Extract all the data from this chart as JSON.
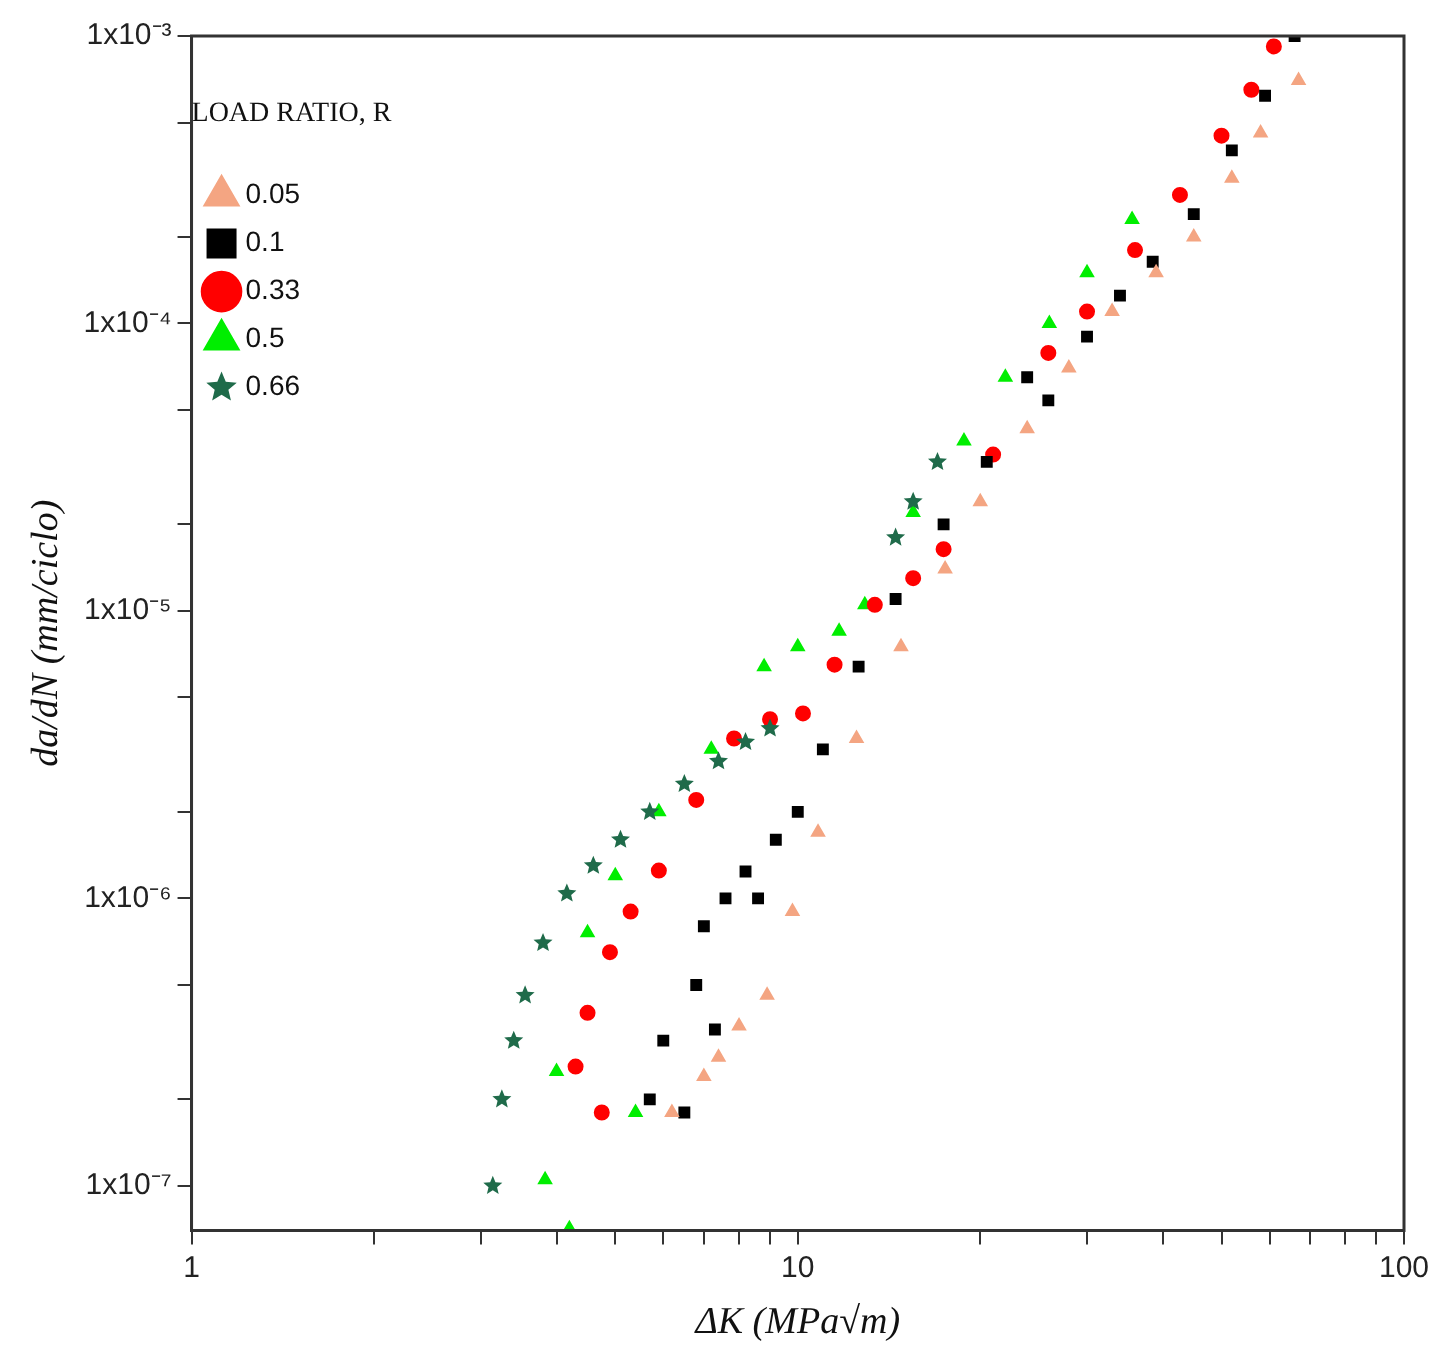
{
  "chart_data": {
    "type": "scatter",
    "xlabel": "ΔK (MPa√m)",
    "ylabel": "da/dN (mm/ciclo)",
    "legend_title": "LOAD RATIO, R",
    "legend": "top left",
    "log": "xy",
    "grid": false,
    "xlim": [
      1,
      100
    ],
    "xticks": [
      1,
      {
        "value": 2,
        "label": null
      },
      {
        "value": 3,
        "label": null
      },
      {
        "value": 4,
        "label": null
      },
      {
        "value": 5,
        "label": null
      },
      {
        "value": 6,
        "label": null
      },
      {
        "value": 7,
        "label": null
      },
      {
        "value": 8,
        "label": null
      },
      {
        "value": 9,
        "label": null
      },
      10,
      {
        "value": 20,
        "label": null
      },
      {
        "value": 30,
        "label": null
      },
      {
        "value": 40,
        "label": null
      },
      {
        "value": 50,
        "label": null
      },
      {
        "value": 60,
        "label": null
      },
      {
        "value": 70,
        "label": null
      },
      {
        "value": 80,
        "label": null
      },
      {
        "value": 90,
        "label": null
      },
      100
    ],
    "ylim": [
      7e-08,
      0.001
    ],
    "yticks": [
      {
        "value": 1e-07,
        "label": "1x10⁻⁷"
      },
      {
        "value": 2e-07,
        "label": null
      },
      {
        "value": 5e-07,
        "label": null
      },
      {
        "value": 1e-06,
        "label": "1x10⁻⁶"
      },
      {
        "value": 2e-06,
        "label": null
      },
      {
        "value": 5e-06,
        "label": null
      },
      {
        "value": 1e-05,
        "label": "1x10⁻⁵"
      },
      {
        "value": 2e-05,
        "label": null
      },
      {
        "value": 5e-05,
        "label": null
      },
      {
        "value": 0.0001,
        "label": "1x10⁻⁴"
      },
      {
        "value": 0.0002,
        "label": null
      },
      {
        "value": 0.0005,
        "label": null
      },
      {
        "value": 0.001,
        "label": "1x10⁻³"
      }
    ],
    "series": [
      {
        "name": "0.05",
        "color": "#f4a582",
        "marker": "triangle",
        "x": [
          6.2,
          7.0,
          7.4,
          8.0,
          8.9,
          9.8,
          10.8,
          12.5,
          14.8,
          17.5,
          20,
          23.9,
          28,
          33,
          39,
          45,
          52,
          58,
          67
        ],
        "values": [
          1.8e-07,
          2.4e-07,
          2.8e-07,
          3.6e-07,
          4.6e-07,
          9e-07,
          1.7e-06,
          3.6e-06,
          7.5e-06,
          1.4e-05,
          2.4e-05,
          4.3e-05,
          7e-05,
          0.00011,
          0.00015,
          0.0002,
          0.00032,
          0.00046,
          0.0007
        ]
      },
      {
        "name": "0.1",
        "color": "#000000",
        "marker": "square",
        "x": [
          5.7,
          6.0,
          6.5,
          6.8,
          7.0,
          7.3,
          7.6,
          8.2,
          8.6,
          9.2,
          10,
          11,
          12.6,
          14.5,
          17.4,
          20.5,
          23.9,
          25.9,
          30,
          34,
          38.5,
          45,
          52,
          59,
          66
        ],
        "values": [
          2e-07,
          3.2e-07,
          1.8e-07,
          5e-07,
          8e-07,
          3.5e-07,
          1e-06,
          1.24e-06,
          1e-06,
          1.6e-06,
          2e-06,
          3.3e-06,
          6.4e-06,
          1.1e-05,
          2e-05,
          3.3e-05,
          6.5e-05,
          5.4e-05,
          9e-05,
          0.000125,
          0.000164,
          0.00024,
          0.0004,
          0.00062,
          0.001
        ]
      },
      {
        "name": "0.33",
        "color": "#ff0000",
        "marker": "circle",
        "x": [
          4.3,
          4.5,
          4.75,
          4.9,
          5.3,
          5.9,
          6.8,
          7.85,
          9,
          10.2,
          11.5,
          13.4,
          15.5,
          17.4,
          21,
          25.9,
          30,
          36,
          42.7,
          50,
          56,
          61
        ],
        "values": [
          2.6e-07,
          4e-07,
          1.8e-07,
          6.5e-07,
          9e-07,
          1.25e-06,
          2.2e-06,
          3.6e-06,
          4.2e-06,
          4.4e-06,
          6.5e-06,
          1.05e-05,
          1.3e-05,
          1.64e-05,
          3.5e-05,
          7.9e-05,
          0.00011,
          0.00018,
          0.00028,
          0.00045,
          0.00065,
          0.00092
        ]
      },
      {
        "name": "0.5",
        "color": "#00ee00",
        "marker": "triangle",
        "x": [
          3.83,
          4.2,
          4.0,
          4.5,
          5.0,
          5.9,
          5.4,
          7.2,
          8.8,
          10,
          11.7,
          12.9,
          15.5,
          18.8,
          22,
          26,
          30,
          35.6
        ],
        "values": [
          1.05e-07,
          7.1e-08,
          2.5e-07,
          7.6e-07,
          1.2e-06,
          2e-06,
          1.8e-07,
          3.3e-06,
          6.4e-06,
          7.5e-06,
          8.5e-06,
          1.05e-05,
          2.2e-05,
          3.9e-05,
          6.5e-05,
          0.0001,
          0.00015,
          0.00023
        ]
      },
      {
        "name": "0.66",
        "color": "#1f6b4a",
        "marker": "star",
        "x": [
          3.14,
          3.25,
          3.4,
          3.55,
          3.8,
          4.16,
          4.6,
          5.1,
          5.7,
          6.5,
          7.4,
          8.2,
          9.0,
          14.5,
          15.5,
          17
        ],
        "values": [
          1e-07,
          2e-07,
          3.2e-07,
          4.6e-07,
          7e-07,
          1.04e-06,
          1.3e-06,
          1.6e-06,
          2e-06,
          2.5e-06,
          3e-06,
          3.5e-06,
          3.9e-06,
          1.8e-05,
          2.4e-05,
          3.3e-05
        ]
      }
    ]
  }
}
